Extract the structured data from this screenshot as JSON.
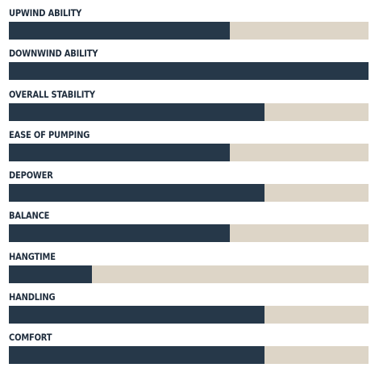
{
  "colors": {
    "fill": "#263849",
    "track": "#ddd5c7",
    "label": "#1f2d3d"
  },
  "ratings": [
    {
      "label": "UPWIND ABILITY",
      "value": 0.615
    },
    {
      "label": "DOWNWIND ABILITY",
      "value": 1.0
    },
    {
      "label": "OVERALL STABILITY",
      "value": 0.71
    },
    {
      "label": "EASE OF PUMPING",
      "value": 0.615
    },
    {
      "label": "DEPOWER",
      "value": 0.71
    },
    {
      "label": "BALANCE",
      "value": 0.615
    },
    {
      "label": "HANGTIME",
      "value": 0.23
    },
    {
      "label": "HANDLING",
      "value": 0.71
    },
    {
      "label": "COMFORT",
      "value": 0.71
    }
  ]
}
